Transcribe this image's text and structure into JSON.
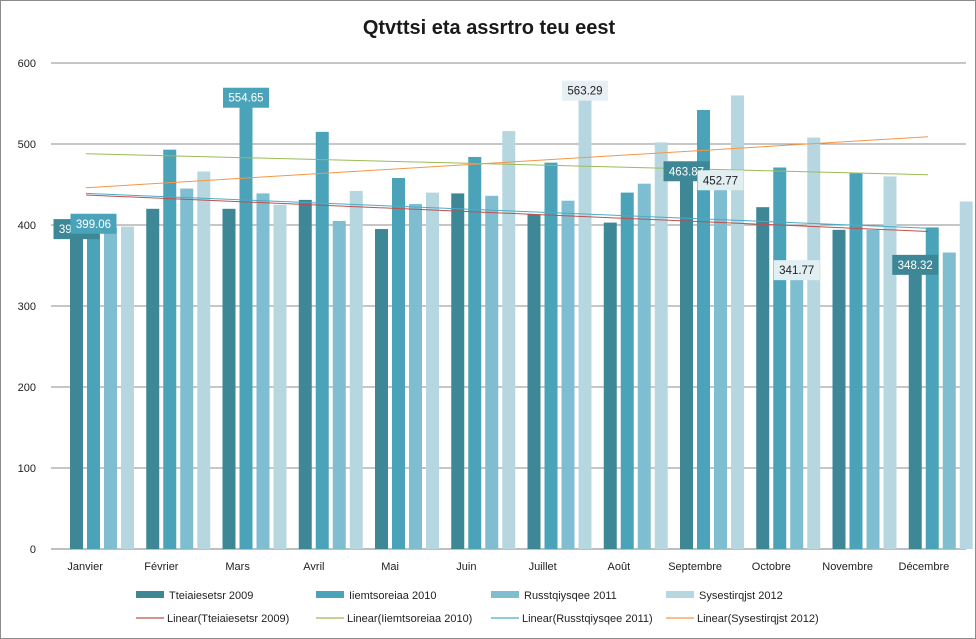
{
  "chart_data": {
    "type": "bar",
    "title": "Qtvttsi eta assrtro teu eest",
    "xlabel": "",
    "ylabel": "",
    "ylim": [
      0,
      600
    ],
    "yticks": [
      0,
      100,
      200,
      300,
      400,
      500,
      600
    ],
    "grid": true,
    "legend_position": "bottom",
    "categories": [
      "Janvier",
      "Février",
      "Mars",
      "Avril",
      "Mai",
      "Juin",
      "Juillet",
      "Août",
      "Septembre",
      "Octobre",
      "Novembre",
      "Décembre"
    ],
    "series": [
      {
        "name": "Tteiaiesetsr 2009",
        "color": "#3e8797",
        "values": [
          392.45,
          420,
          420,
          431,
          395,
          439,
          413,
          403,
          463.87,
          422,
          394,
          348.32
        ]
      },
      {
        "name": "Iiemtsoreiaa 2010",
        "color": "#4aa3b9",
        "values": [
          399.06,
          493,
          554.65,
          515,
          458,
          484,
          477,
          440,
          542,
          471,
          464,
          397
        ]
      },
      {
        "name": "Russtqiysqee 2011",
        "color": "#7fbdd0",
        "values": [
          397,
          445,
          439,
          405,
          426,
          436,
          430,
          451,
          452.77,
          341.77,
          394,
          366
        ]
      },
      {
        "name": "Sysestirqjst 2012",
        "color": "#b7d7e0",
        "values": [
          398,
          466,
          425,
          442,
          440,
          516,
          563.29,
          502,
          560,
          508,
          460,
          429
        ]
      }
    ],
    "trendlines": [
      {
        "name": "Linear(Tteiaiesetsr 2009)",
        "color": "#c0504d",
        "start": 437,
        "end": 392
      },
      {
        "name": "Linear(Iiemtsoreiaa 2010)",
        "color": "#9bbb59",
        "start": 488,
        "end": 462
      },
      {
        "name": "Linear(Russtqiysqee 2011)",
        "color": "#4bacc6",
        "start": 439,
        "end": 396
      },
      {
        "name": "Linear(Sysestirqjst 2012)",
        "color": "#f79646",
        "start": 446,
        "end": 509
      }
    ],
    "data_labels": [
      {
        "text": "392.45",
        "series": 0,
        "category": 0
      },
      {
        "text": "399.06",
        "series": 1,
        "category": 0
      },
      {
        "text": "554.65",
        "series": 1,
        "category": 2
      },
      {
        "text": "563.29",
        "series": 3,
        "category": 6
      },
      {
        "text": "463.87",
        "series": 0,
        "category": 8
      },
      {
        "text": "452.77",
        "series": 2,
        "category": 8
      },
      {
        "text": "341.77",
        "series": 2,
        "category": 9
      },
      {
        "text": "348.32",
        "series": 0,
        "category": 11
      }
    ]
  }
}
